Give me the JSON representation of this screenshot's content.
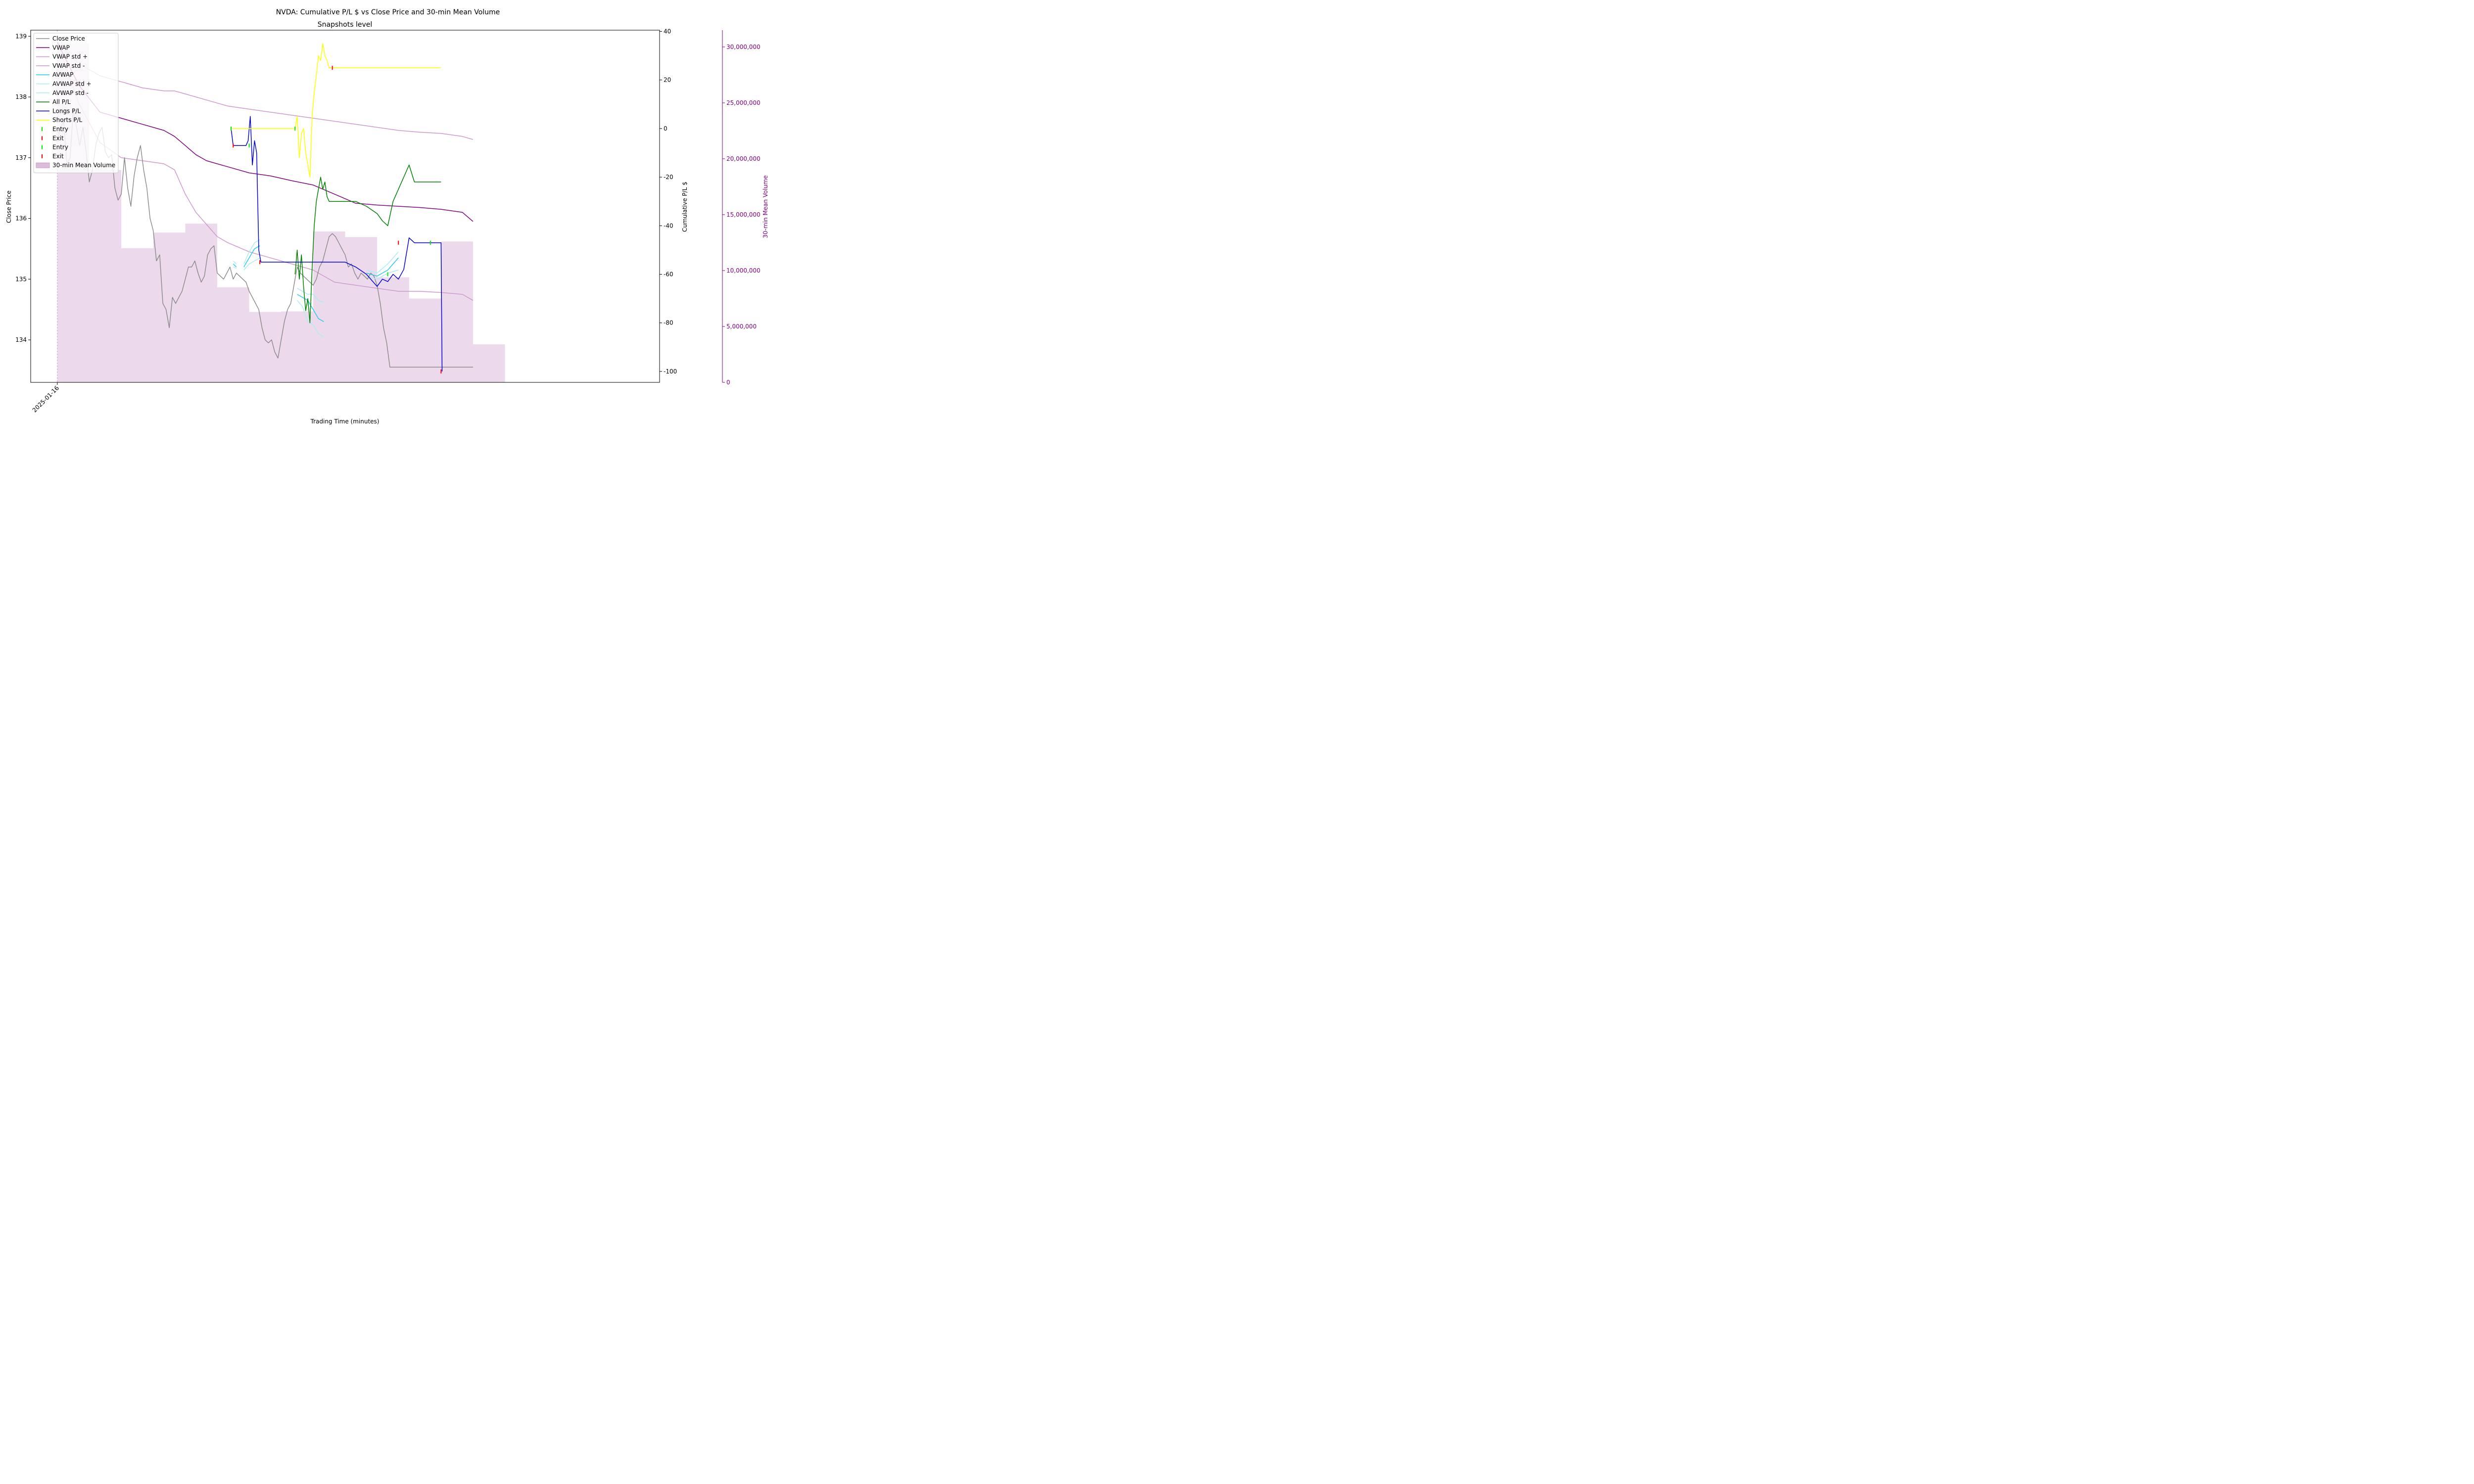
{
  "chart_data": {
    "type": "line",
    "title": "NVDA: Cumulative P/L $ vs Close Price and 30-min Mean Volume",
    "subtitle": "Snapshots level",
    "xlabel": "Trading Time (minutes)",
    "ylabel_left": "Close Price",
    "ylabel_right": "Cumulative P/L $",
    "ylabel_volume": "30-min Mean Volume",
    "x_tick_labels": [
      "2025-01-16"
    ],
    "xlim": [
      -25,
      565
    ],
    "ylim_price": [
      133.3,
      139.1
    ],
    "ylim_pl": [
      -104.5,
      40.5
    ],
    "ylim_volume": [
      0,
      31500000
    ],
    "price_ticks": [
      "134",
      "135",
      "136",
      "137",
      "138",
      "139"
    ],
    "pl_ticks": [
      "-100",
      "-80",
      "-60",
      "-40",
      "-20",
      "0",
      "20",
      "40"
    ],
    "volume_ticks": [
      "0",
      "5,000,000",
      "10,000,000",
      "15,000,000",
      "20,000,000",
      "25,000,000",
      "30,000,000"
    ],
    "legend_placement": "upper-left",
    "grid": false,
    "colors": {
      "close": "#8c8c8c",
      "vwap": "#800080",
      "vwap_std": "#cc99cc",
      "avwap": "#22ccee",
      "avwap_std": "#a8ecf4",
      "all_pl": "#008000",
      "longs_pl": "#0000dd",
      "shorts_pl": "#ffff00",
      "entry": "#00ee00",
      "exit": "#ff0000",
      "volume": "#ddbbdd",
      "volume_axis": "#800080"
    },
    "legend": [
      {
        "label": "Close Price",
        "kind": "line",
        "color": "#8c8c8c"
      },
      {
        "label": "VWAP",
        "kind": "line",
        "color": "#800080"
      },
      {
        "label": "VWAP std +",
        "kind": "line",
        "color": "#cc99cc"
      },
      {
        "label": "VWAP std -",
        "kind": "line",
        "color": "#cc99cc"
      },
      {
        "label": "AVWAP",
        "kind": "line",
        "color": "#22ccee"
      },
      {
        "label": "AVWAP std +",
        "kind": "line",
        "color": "#a8ecf4"
      },
      {
        "label": "AVWAP std -",
        "kind": "line",
        "color": "#a8ecf4"
      },
      {
        "label": "All P/L",
        "kind": "line",
        "color": "#008000"
      },
      {
        "label": "Longs P/L",
        "kind": "line",
        "color": "#0000dd"
      },
      {
        "label": "Shorts P/L",
        "kind": "line",
        "color": "#ffff00"
      },
      {
        "label": "Entry",
        "kind": "tick",
        "color": "#00ee00"
      },
      {
        "label": "Exit",
        "kind": "tick",
        "color": "#ff0000"
      },
      {
        "label": "Entry",
        "kind": "tick",
        "color": "#00ee00"
      },
      {
        "label": "Exit",
        "kind": "tick",
        "color": "#ff0000"
      },
      {
        "label": "30-min Mean Volume",
        "kind": "patch",
        "color": "#ddbbdd"
      }
    ],
    "volume_bars": [
      {
        "start": 0,
        "end": 30,
        "value": 30300000
      },
      {
        "start": 30,
        "end": 60,
        "value": 19000000
      },
      {
        "start": 60,
        "end": 90,
        "value": 12000000
      },
      {
        "start": 90,
        "end": 120,
        "value": 13400000
      },
      {
        "start": 120,
        "end": 150,
        "value": 14200000
      },
      {
        "start": 150,
        "end": 180,
        "value": 8500000
      },
      {
        "start": 180,
        "end": 210,
        "value": 6300000
      },
      {
        "start": 210,
        "end": 240,
        "value": 6350000
      },
      {
        "start": 240,
        "end": 270,
        "value": 13500000
      },
      {
        "start": 270,
        "end": 300,
        "value": 13000000
      },
      {
        "start": 300,
        "end": 330,
        "value": 9400000
      },
      {
        "start": 330,
        "end": 360,
        "value": 7500000
      },
      {
        "start": 360,
        "end": 390,
        "value": 12600000
      },
      {
        "start": 390,
        "end": 420,
        "value": 3400000
      }
    ],
    "close_price": {
      "x": [
        0,
        3,
        6,
        9,
        12,
        15,
        18,
        21,
        24,
        27,
        30,
        33,
        36,
        39,
        42,
        45,
        48,
        51,
        54,
        57,
        60,
        63,
        66,
        69,
        72,
        75,
        78,
        81,
        84,
        87,
        90,
        93,
        96,
        99,
        102,
        105,
        108,
        111,
        114,
        117,
        120,
        123,
        126,
        129,
        132,
        135,
        138,
        141,
        144,
        147,
        150,
        153,
        156,
        159,
        162,
        165,
        168,
        171,
        174,
        177,
        180,
        183,
        186,
        189,
        192,
        195,
        198,
        201,
        204,
        207,
        210,
        213,
        216,
        219,
        222,
        225,
        228,
        231,
        234,
        237,
        240,
        243,
        246,
        249,
        252,
        255,
        258,
        261,
        264,
        267,
        270,
        273,
        276,
        279,
        282,
        285,
        288,
        291,
        294,
        297,
        300,
        303,
        306,
        309,
        312,
        315,
        318,
        321,
        324,
        327,
        330,
        333,
        336,
        339,
        342,
        345,
        348,
        351,
        354,
        357,
        360,
        363,
        366,
        369,
        372,
        375,
        378,
        381,
        384,
        387,
        390
      ],
      "y": [
        137.3,
        137.5,
        137.6,
        136.9,
        137.0,
        137.8,
        137.5,
        137.2,
        137.5,
        137.1,
        136.6,
        136.8,
        137.2,
        137.4,
        137.5,
        137.1,
        137.0,
        137.05,
        136.5,
        136.3,
        136.4,
        137.0,
        136.5,
        136.2,
        136.7,
        137.0,
        137.2,
        136.8,
        136.5,
        136.0,
        135.8,
        135.3,
        135.4,
        134.6,
        134.5,
        134.2,
        134.7,
        134.6,
        134.7,
        134.8,
        135.0,
        135.2,
        135.2,
        135.3,
        135.1,
        134.95,
        135.05,
        135.4,
        135.5,
        135.55,
        135.1,
        135.05,
        135.0,
        135.1,
        135.2,
        135.0,
        135.1,
        135.05,
        135.0,
        134.95,
        134.8,
        134.7,
        134.6,
        134.5,
        134.2,
        134.0,
        133.95,
        134.0,
        133.8,
        133.7,
        134.0,
        134.3,
        134.5,
        134.6,
        134.9,
        135.2,
        135.1,
        135.05,
        135.0,
        134.95,
        134.9,
        135.0,
        135.2,
        135.3,
        135.5,
        135.7,
        135.75,
        135.7,
        135.6,
        135.5,
        135.4,
        135.2,
        135.25,
        135.1,
        135.0,
        135.1,
        135.05,
        135.0,
        135.1,
        135.05,
        134.9,
        134.6,
        134.2,
        133.95,
        133.55,
        133.55,
        133.55,
        133.55,
        133.55,
        133.55,
        133.55,
        133.55,
        133.55,
        133.55,
        133.55,
        133.55,
        133.55,
        133.55,
        133.55,
        133.55,
        133.55,
        133.55,
        133.55,
        133.55,
        133.55,
        133.55,
        133.55,
        133.55,
        133.55,
        133.55,
        133.55
      ]
    },
    "vwap": {
      "x": [
        0,
        20,
        40,
        60,
        80,
        100,
        110,
        120,
        130,
        140,
        150,
        160,
        180,
        200,
        220,
        240,
        260,
        280,
        300,
        320,
        340,
        360,
        380,
        390
      ],
      "y": [
        138.9,
        138.2,
        137.75,
        137.65,
        137.55,
        137.45,
        137.35,
        137.2,
        137.05,
        136.95,
        136.9,
        136.85,
        136.75,
        136.7,
        136.62,
        136.55,
        136.4,
        136.25,
        136.22,
        136.2,
        136.18,
        136.15,
        136.1,
        135.95
      ]
    },
    "vwap_std_plus": {
      "x": [
        0,
        20,
        40,
        60,
        80,
        100,
        110,
        120,
        130,
        140,
        150,
        160,
        180,
        200,
        220,
        240,
        260,
        280,
        300,
        320,
        340,
        360,
        380,
        390
      ],
      "y": [
        138.9,
        138.55,
        138.35,
        138.25,
        138.15,
        138.1,
        138.1,
        138.05,
        138.0,
        137.95,
        137.9,
        137.85,
        137.8,
        137.75,
        137.7,
        137.65,
        137.6,
        137.55,
        137.5,
        137.45,
        137.42,
        137.4,
        137.35,
        137.3
      ]
    },
    "vwap_std_minus": {
      "x": [
        0,
        20,
        40,
        60,
        80,
        100,
        110,
        120,
        130,
        140,
        150,
        160,
        180,
        200,
        220,
        240,
        260,
        280,
        300,
        320,
        340,
        360,
        380,
        390
      ],
      "y": [
        138.9,
        137.9,
        137.25,
        137.0,
        136.95,
        136.9,
        136.8,
        136.4,
        136.1,
        135.9,
        135.7,
        135.6,
        135.45,
        135.35,
        135.25,
        135.15,
        134.95,
        134.9,
        134.85,
        134.8,
        134.8,
        134.78,
        134.75,
        134.65
      ]
    },
    "avwap": [
      {
        "x": [
          165,
          168
        ],
        "y": [
          135.25,
          135.2
        ]
      },
      {
        "x": [
          175,
          180,
          185,
          190
        ],
        "y": [
          135.2,
          135.35,
          135.5,
          135.55
        ]
      },
      {
        "x": [
          225,
          230,
          235,
          240,
          245,
          250
        ],
        "y": [
          134.75,
          134.7,
          134.65,
          134.5,
          134.35,
          134.3
        ]
      },
      {
        "x": [
          290,
          300,
          310,
          320
        ],
        "y": [
          135.1,
          135.05,
          135.15,
          135.35
        ]
      }
    ],
    "avwap_std_plus": [
      {
        "x": [
          165,
          168
        ],
        "y": [
          135.3,
          135.25
        ]
      },
      {
        "x": [
          175,
          180,
          185,
          190
        ],
        "y": [
          135.25,
          135.45,
          135.6,
          135.65
        ]
      },
      {
        "x": [
          225,
          230,
          235,
          240,
          245,
          250
        ],
        "y": [
          134.85,
          134.8,
          134.75,
          134.75,
          134.65,
          134.62
        ]
      },
      {
        "x": [
          290,
          300,
          310,
          320
        ],
        "y": [
          135.15,
          135.1,
          135.25,
          135.45
        ]
      }
    ],
    "avwap_std_minus": [
      {
        "x": [
          165,
          168
        ],
        "y": [
          135.2,
          135.18
        ]
      },
      {
        "x": [
          175,
          180,
          185,
          190
        ],
        "y": [
          135.15,
          135.25,
          135.3,
          135.35
        ]
      },
      {
        "x": [
          225,
          230,
          235,
          240,
          245,
          250
        ],
        "y": [
          134.65,
          134.55,
          134.3,
          134.25,
          134.1,
          134.05
        ]
      },
      {
        "x": [
          290,
          300,
          310,
          320
        ],
        "y": [
          135.05,
          135.0,
          135.1,
          135.15
        ]
      }
    ],
    "all_pl": {
      "x": [
        223,
        225,
        227,
        229,
        231,
        233,
        235,
        237,
        239,
        241,
        243,
        245,
        247,
        249,
        251,
        253,
        255,
        257,
        259,
        261,
        263,
        270,
        280,
        290,
        300,
        305,
        310,
        315,
        320,
        325,
        330,
        335,
        340,
        345,
        350,
        355,
        360
      ],
      "y": [
        -60,
        -50,
        -62,
        -52,
        -65,
        -75,
        -70,
        -80,
        -58,
        -40,
        -30,
        -25,
        -20,
        -25,
        -22,
        -28,
        -30,
        -30,
        -30,
        -30,
        -30,
        -30,
        -30,
        -32,
        -35,
        -38,
        -40,
        -30,
        -25,
        -20,
        -15,
        -22,
        -22,
        -22,
        -22,
        -22,
        -22
      ]
    },
    "longs_pl": {
      "x": [
        163,
        165,
        167,
        169,
        171,
        173,
        175,
        177,
        179,
        181,
        183,
        185,
        187,
        189,
        191,
        195,
        210,
        230,
        250,
        270,
        280,
        290,
        300,
        305,
        310,
        315,
        320,
        325,
        330,
        335,
        340,
        345,
        350,
        355,
        360,
        361
      ],
      "y": [
        0,
        -7,
        -7,
        -7,
        -7,
        -7,
        -7,
        -7,
        -5,
        5,
        -15,
        -5,
        -10,
        -50,
        -55,
        -55,
        -55,
        -55,
        -55,
        -55,
        -57,
        -60,
        -65,
        -62,
        -63,
        -60,
        -62,
        -58,
        -45,
        -47,
        -47,
        -47,
        -47,
        -47,
        -47,
        -100
      ]
    },
    "shorts_pl": {
      "x": [
        163,
        170,
        180,
        200,
        223,
        225,
        227,
        229,
        231,
        233,
        235,
        237,
        239,
        241,
        243,
        245,
        247,
        249,
        251,
        253,
        255,
        257,
        259,
        300,
        360
      ],
      "y": [
        0,
        0,
        0,
        0,
        0,
        5,
        -12,
        -2,
        0,
        -10,
        -15,
        -20,
        5,
        15,
        22,
        30,
        28,
        35,
        30,
        28,
        25,
        25,
        25,
        25,
        25
      ]
    },
    "markers": {
      "entry_pl": [
        163,
        180,
        223,
        310,
        350
      ],
      "exit_pl": [
        165,
        190,
        258,
        320,
        360
      ],
      "entry_pl_values": [
        0,
        -7,
        0,
        -60,
        -47
      ],
      "exit_pl_values": [
        -7,
        -55,
        25,
        -47,
        -100
      ]
    }
  }
}
